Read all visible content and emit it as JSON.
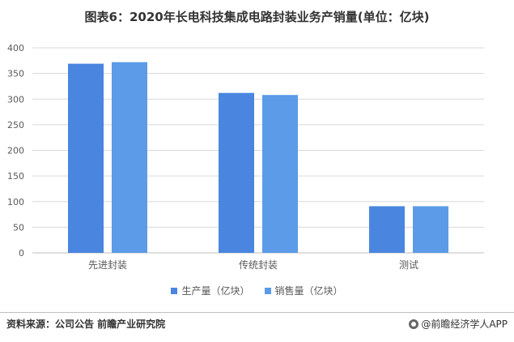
{
  "title": "图表6：2020年长电科技集成电路封装业务产销量(单位：亿块)",
  "source": "资料来源：公司公告 前瞻产业研究院",
  "brand": "@前瞻经济学人APP",
  "colors": {
    "series0": "#4A86E0",
    "series1": "#5B9BE8",
    "grid": "#D9D9D9",
    "axis": "#BFBFBF"
  },
  "chart_data": {
    "type": "bar",
    "categories": [
      "先进封装",
      "传统封装",
      "测试"
    ],
    "series": [
      {
        "name": "生产量（亿块）",
        "values": [
          369,
          312,
          91
        ]
      },
      {
        "name": "销售量（亿块）",
        "values": [
          372,
          308,
          91
        ]
      }
    ],
    "ylim": [
      0,
      400
    ],
    "yticks": [
      0,
      50,
      100,
      150,
      200,
      250,
      300,
      350,
      400
    ],
    "grid": true,
    "legend_position": "bottom"
  }
}
